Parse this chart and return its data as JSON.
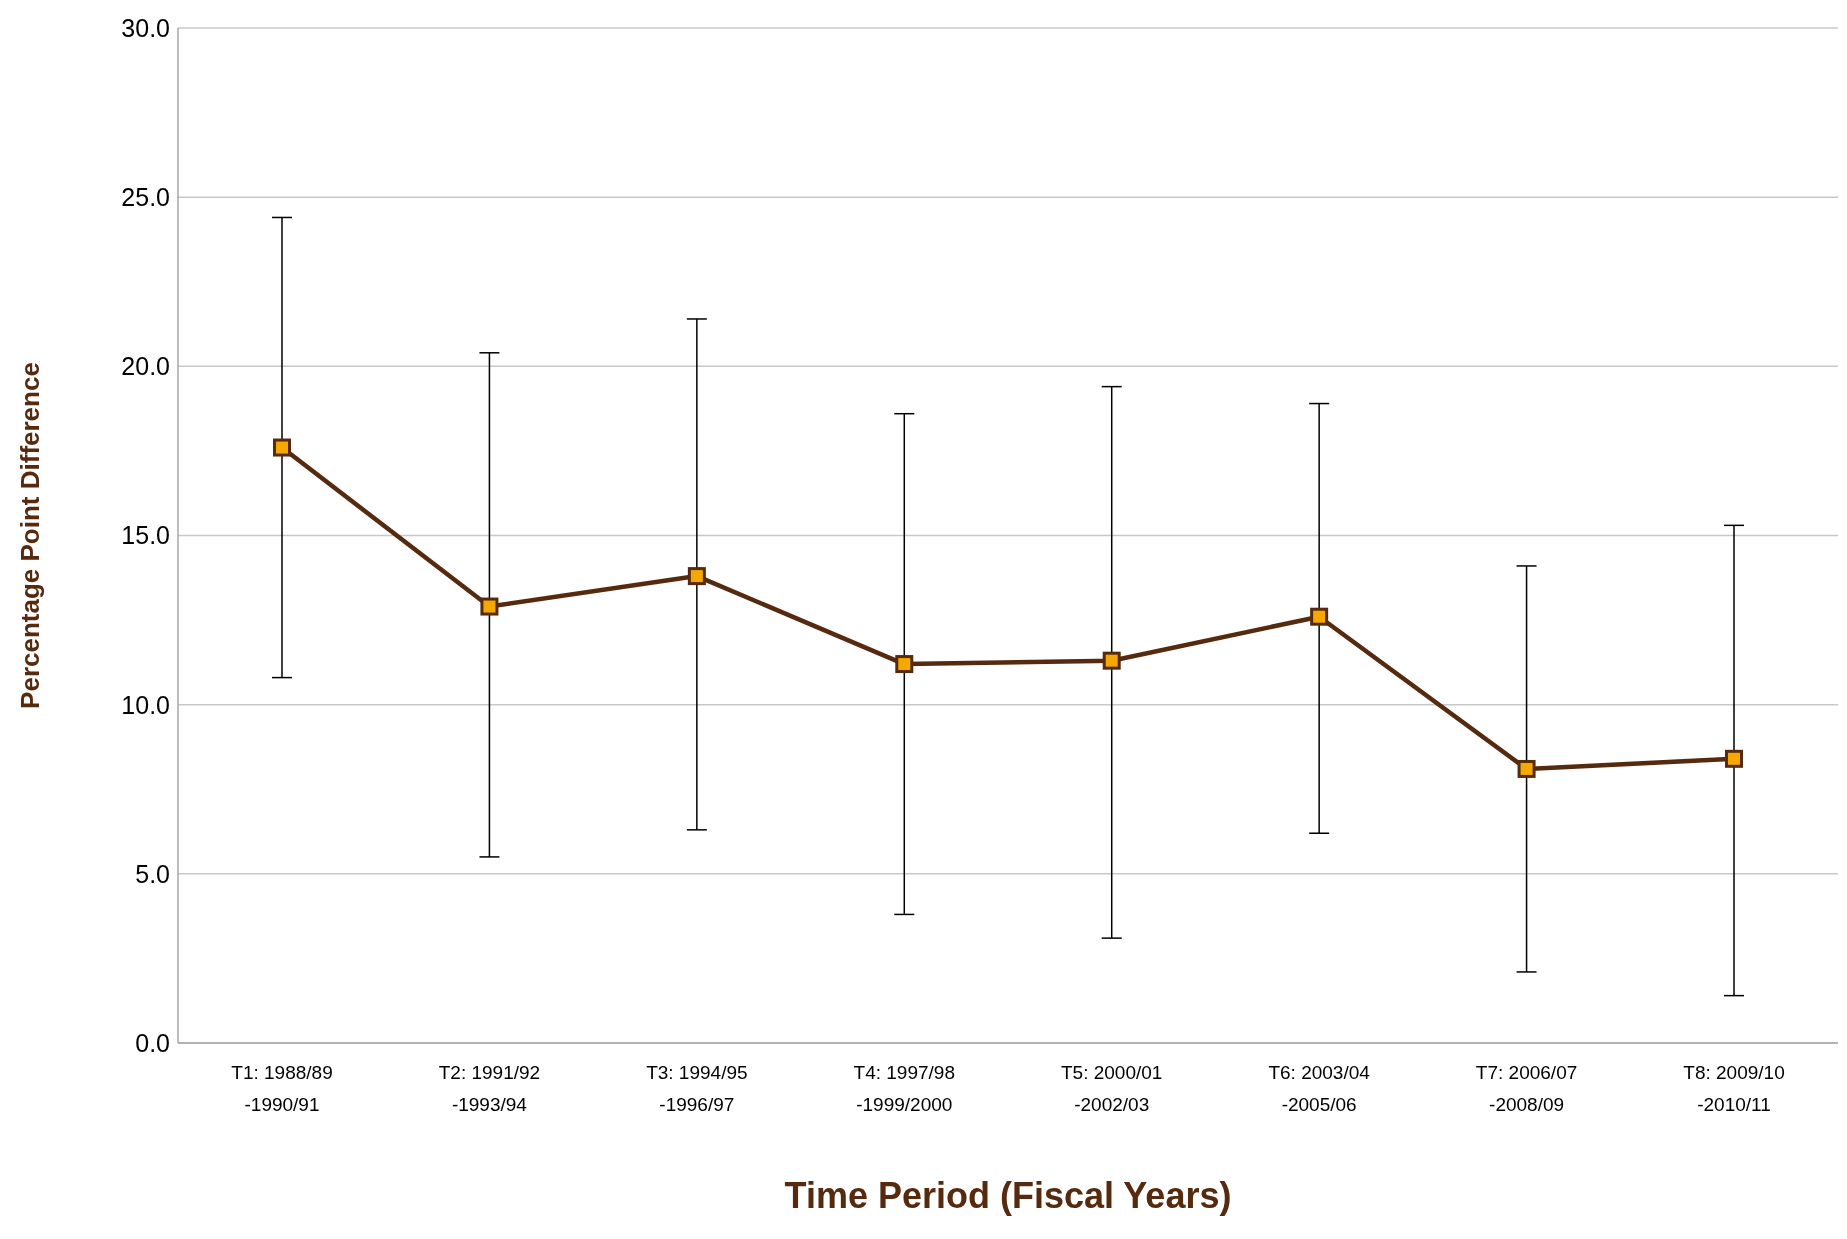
{
  "chart_data": {
    "type": "line",
    "xlabel": "Time Period (Fiscal Years)",
    "ylabel": "Percentage Point Difference",
    "categories": [
      "T1: 1988/89\n-1990/91",
      "T2: 1991/92\n-1993/94",
      "T3: 1994/95\n-1996/97",
      "T4: 1997/98\n-1999/2000",
      "T5: 2000/01\n-2002/03",
      "T6: 2003/04\n-2005/06",
      "T7: 2006/07\n-2008/09",
      "T8: 2009/10\n-2010/11"
    ],
    "series": [
      {
        "color": "#562a0e",
        "values": [
          17.6,
          12.9,
          13.8,
          11.2,
          11.3,
          12.6,
          8.1,
          8.4
        ],
        "errors": [
          [
            10.8,
            24.4
          ],
          [
            5.5,
            20.4
          ],
          [
            6.3,
            21.4
          ],
          [
            3.8,
            18.6
          ],
          [
            3.1,
            19.4
          ],
          [
            6.2,
            18.9
          ],
          [
            2.1,
            14.1
          ],
          [
            1.4,
            15.3
          ]
        ],
        "colors": [
          "#f5a800",
          "#f5a800",
          "#f5a800",
          "#f5a800",
          "#f5a800",
          "#f5a800",
          "#f5a800",
          "#f5a800"
        ]
      }
    ],
    "marker": "square",
    "line_style": "solid",
    "grid": "y",
    "legend": false,
    "ylim": [
      0,
      30
    ],
    "yticks": [
      {
        "value": 0,
        "label": "0.0"
      },
      {
        "value": 5,
        "label": "5.0"
      },
      {
        "value": 10,
        "label": "10.0"
      },
      {
        "value": 15,
        "label": "15.0"
      },
      {
        "value": 20,
        "label": "20.0"
      },
      {
        "value": 25,
        "label": "25.0"
      },
      {
        "value": 30,
        "label": "30.0"
      }
    ]
  }
}
